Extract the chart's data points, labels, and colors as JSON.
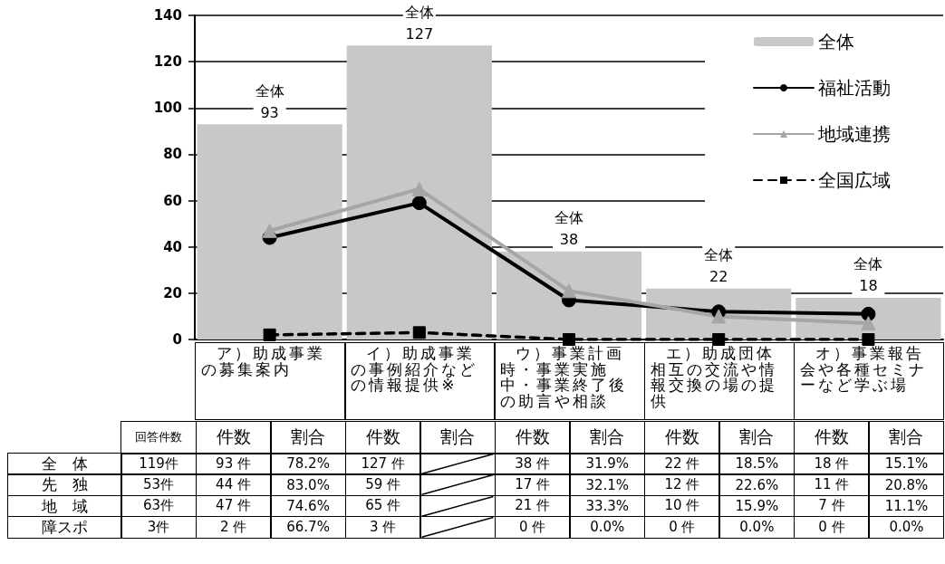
{
  "chart_data": [
    {
      "type": "bar",
      "categories": [
        "ア）助成事業の募集案内",
        "イ）助成事業の事例紹介などの情報提供※",
        "ウ）事業計画時・事業実施中・事業終了後の助言や相談",
        "エ）助成団体相互の交流や情報交換の場の提供",
        "オ）事業報告会や各種セミナーなど学ぶ場"
      ],
      "series": [
        {
          "name": "全体",
          "color": "#c8c8c8",
          "values": [
            93,
            127,
            38,
            22,
            18
          ],
          "value_labels": [
            "93",
            "127",
            "38",
            "22",
            "18"
          ]
        },
        {
          "name": "福祉活動",
          "type": "line",
          "color": "#000000",
          "marker": "circle",
          "line_style": "solid",
          "values": [
            44,
            59,
            17,
            12,
            11
          ]
        },
        {
          "name": "地域連携",
          "type": "line",
          "color": "#a6a6a6",
          "marker": "triangle",
          "line_style": "solid",
          "values": [
            47,
            65,
            21,
            10,
            7
          ]
        },
        {
          "name": "全国広域",
          "type": "line",
          "color": "#000000",
          "marker": "square",
          "line_style": "dashed",
          "values": [
            2,
            3,
            0,
            0,
            0
          ]
        }
      ],
      "ylim": [
        0,
        140
      ],
      "yticks": [
        0,
        20,
        40,
        60,
        80,
        100,
        120,
        140
      ],
      "grid": "y",
      "legend": "top right"
    },
    {
      "type": "other",
      "categories": [
        "回答件数",
        "件数",
        "割合",
        "件数",
        "割合",
        "件数",
        "割合",
        "件数",
        "割合",
        "件数",
        "割合"
      ],
      "y_categories": [
        "全　体",
        "先　独",
        "地　域",
        "障スポ"
      ],
      "cell_labels": [
        [
          "119件",
          "93 件",
          "78.2%",
          "127 件",
          null,
          "38 件",
          "31.9%",
          "22 件",
          "18.5%",
          "18 件",
          "15.1%"
        ],
        [
          "53件",
          "44 件",
          "83.0%",
          "59 件",
          null,
          "17 件",
          "32.1%",
          "12 件",
          "22.6%",
          "11 件",
          "20.8%"
        ],
        [
          "63件",
          "47 件",
          "74.6%",
          "65 件",
          null,
          "21 件",
          "33.3%",
          "10 件",
          "15.9%",
          "7 件",
          "11.1%"
        ],
        [
          "3件",
          "2 件",
          "66.7%",
          "3 件",
          null,
          "0 件",
          "0.0%",
          "0 件",
          "0.0%",
          "0 件",
          "0.0%"
        ]
      ]
    }
  ]
}
